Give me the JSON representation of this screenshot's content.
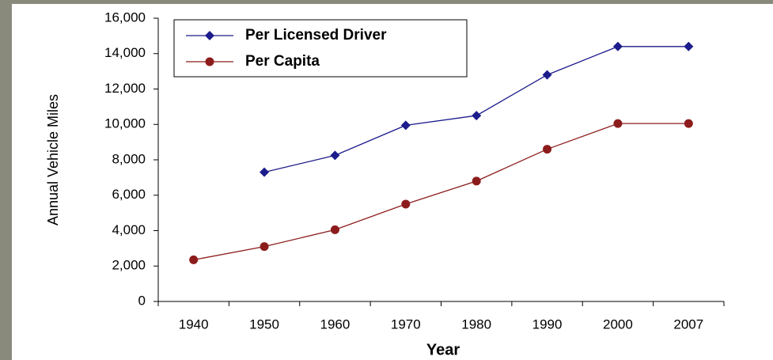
{
  "chart_data": {
    "type": "line",
    "x_label": "Year",
    "y_label": "Annual Vehicle Miles",
    "categories": [
      "1940",
      "1950",
      "1960",
      "1970",
      "1980",
      "1990",
      "2000",
      "2007"
    ],
    "series": [
      {
        "name": "Per Licensed Driver",
        "color": "#1c1c8c",
        "marker": "diamond",
        "values": [
          null,
          7300,
          8250,
          9950,
          10500,
          12800,
          14400,
          14400
        ]
      },
      {
        "name": "Per Capita",
        "color": "#8c1c1c",
        "marker": "circle",
        "values": [
          2350,
          3100,
          4050,
          5500,
          6800,
          8600,
          10050,
          10050
        ]
      }
    ],
    "ylim": [
      0,
      16000
    ],
    "yticks": [
      0,
      {
        "value": 2000,
        "label": "2,000"
      },
      {
        "value": 4000,
        "label": "4,000"
      },
      {
        "value": 6000,
        "label": "6,000"
      },
      {
        "value": 8000,
        "label": "8,000"
      },
      {
        "value": 10000,
        "label": "10,000"
      },
      {
        "value": 12000,
        "label": "12,000"
      },
      {
        "value": 14000,
        "label": "14,000"
      },
      {
        "value": 16000,
        "label": "16,000"
      }
    ],
    "grid": false,
    "legend": "top-left"
  }
}
